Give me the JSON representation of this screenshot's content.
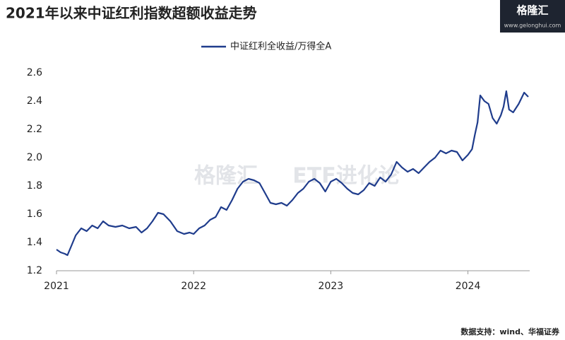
{
  "chart_data": {
    "type": "line",
    "title": "2021年以来中证红利指数超额收益走势",
    "logo": {
      "name": "格隆汇",
      "url": "www.gelonghui.com"
    },
    "watermark": [
      "格隆汇",
      "ETF进化论"
    ],
    "source": "数据支持：wind、华福证券",
    "xlim": [
      2021,
      2024.44
    ],
    "xticks": [
      2021,
      2022,
      2023,
      2024
    ],
    "ylim": [
      1.2,
      2.6
    ],
    "yticks": [
      {
        "value": 1.2,
        "label": "1.2"
      },
      {
        "value": 1.4,
        "label": "1.4"
      },
      {
        "value": 1.6,
        "label": "1.6"
      },
      {
        "value": 1.8,
        "label": "1.8"
      },
      {
        "value": 2.0,
        "label": "2.0"
      },
      {
        "value": 2.2,
        "label": "2.2"
      },
      {
        "value": 2.4,
        "label": "2.4"
      },
      {
        "value": 2.6,
        "label": "2.6"
      }
    ],
    "grid": false,
    "legend": "top",
    "x": [
      2021.0,
      2021.03,
      2021.06,
      2021.08,
      2021.11,
      2021.14,
      2021.18,
      2021.22,
      2021.26,
      2021.3,
      2021.34,
      2021.38,
      2021.43,
      2021.48,
      2021.53,
      2021.58,
      2021.62,
      2021.66,
      2021.7,
      2021.74,
      2021.78,
      2021.83,
      2021.88,
      2021.93,
      2021.97,
      2022.0,
      2022.04,
      2022.08,
      2022.12,
      2022.16,
      2022.2,
      2022.24,
      2022.28,
      2022.32,
      2022.36,
      2022.4,
      2022.44,
      2022.48,
      2022.52,
      2022.56,
      2022.6,
      2022.64,
      2022.68,
      2022.72,
      2022.76,
      2022.8,
      2022.84,
      2022.88,
      2022.92,
      2022.96,
      2023.0,
      2023.04,
      2023.08,
      2023.12,
      2023.16,
      2023.2,
      2023.24,
      2023.28,
      2023.32,
      2023.36,
      2023.4,
      2023.44,
      2023.48,
      2023.52,
      2023.56,
      2023.6,
      2023.64,
      2023.68,
      2023.72,
      2023.76,
      2023.8,
      2023.84,
      2023.88,
      2023.92,
      2023.96,
      2024.0,
      2024.03,
      2024.05,
      2024.07,
      2024.09,
      2024.12,
      2024.15,
      2024.18,
      2024.21,
      2024.24,
      2024.26,
      2024.28,
      2024.3,
      2024.33,
      2024.37,
      2024.41,
      2024.44
    ],
    "series": [
      {
        "name": "中证红利全收益/万得全A",
        "color": "#1f3c8c",
        "values": [
          1.35,
          1.33,
          1.32,
          1.31,
          1.38,
          1.45,
          1.5,
          1.48,
          1.52,
          1.5,
          1.55,
          1.52,
          1.51,
          1.52,
          1.5,
          1.51,
          1.47,
          1.5,
          1.55,
          1.61,
          1.6,
          1.55,
          1.48,
          1.46,
          1.47,
          1.46,
          1.5,
          1.52,
          1.56,
          1.58,
          1.65,
          1.63,
          1.7,
          1.78,
          1.83,
          1.85,
          1.84,
          1.82,
          1.75,
          1.68,
          1.67,
          1.68,
          1.66,
          1.7,
          1.75,
          1.78,
          1.83,
          1.85,
          1.82,
          1.76,
          1.83,
          1.85,
          1.82,
          1.78,
          1.75,
          1.74,
          1.77,
          1.82,
          1.8,
          1.86,
          1.83,
          1.88,
          1.97,
          1.93,
          1.9,
          1.92,
          1.89,
          1.93,
          1.97,
          2.0,
          2.05,
          2.03,
          2.05,
          2.04,
          1.98,
          2.02,
          2.06,
          2.16,
          2.25,
          2.44,
          2.4,
          2.38,
          2.28,
          2.24,
          2.3,
          2.36,
          2.47,
          2.34,
          2.32,
          2.38,
          2.46,
          2.43
        ]
      }
    ]
  }
}
